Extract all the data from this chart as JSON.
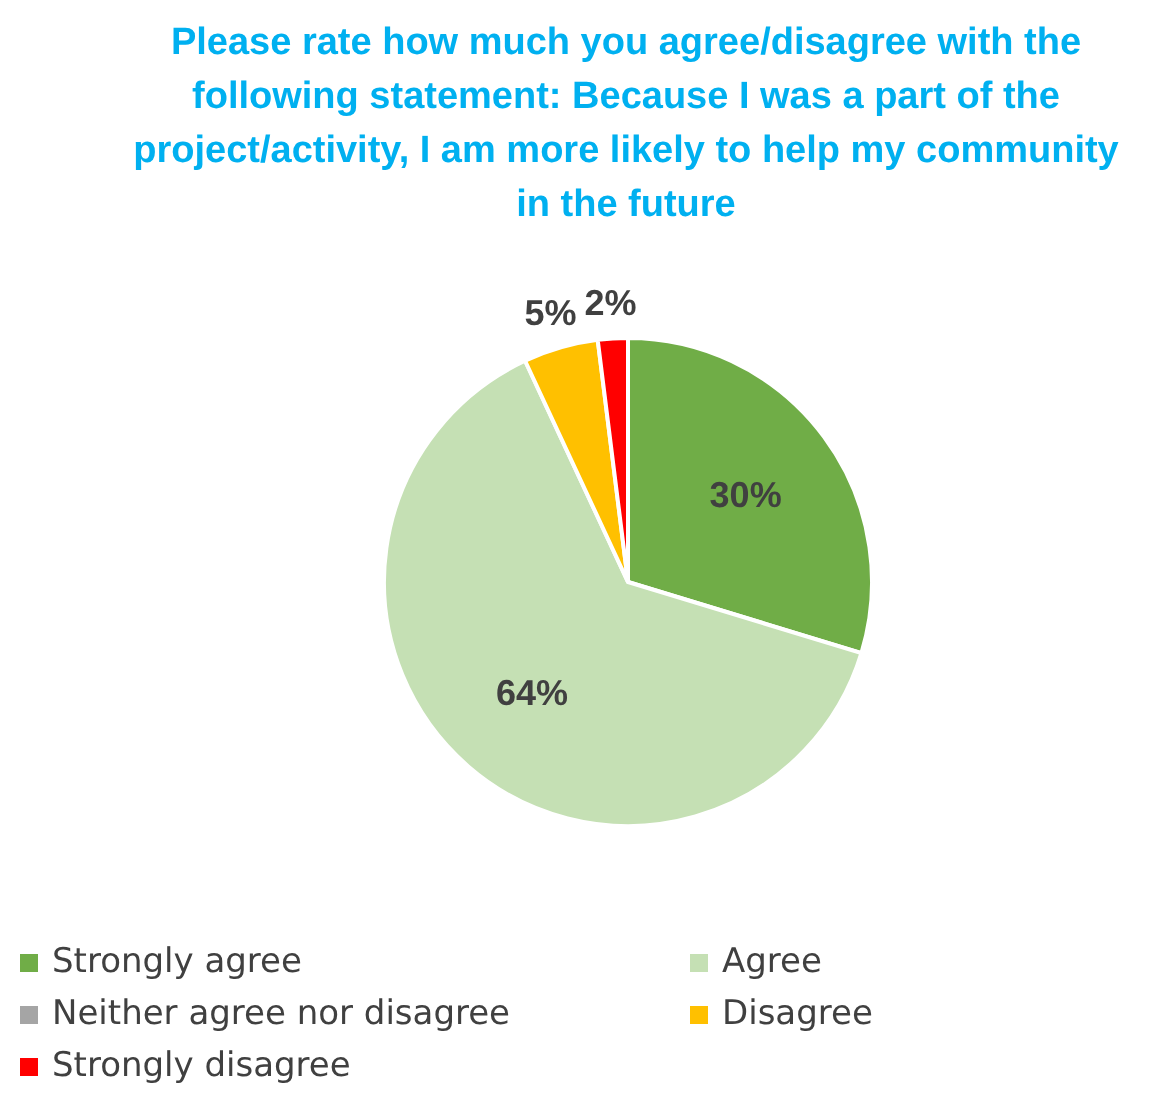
{
  "chart_data": {
    "type": "pie",
    "title": "Please rate how much you agree/disagree with the following statement: Because I was a part of the project/activity, I am more likely to help my community in the future",
    "categories": [
      "Strongly agree",
      "Agree",
      "Neither agree nor disagree",
      "Disagree",
      "Strongly disagree"
    ],
    "values": [
      30,
      64,
      0,
      5,
      2
    ],
    "colors": [
      "#70ad47",
      "#c5e0b4",
      "#a5a5a5",
      "#ffc000",
      "#ff0000"
    ],
    "value_labels": [
      "30%",
      "64%",
      null,
      "5%",
      "2%"
    ],
    "legend": "bottom"
  }
}
